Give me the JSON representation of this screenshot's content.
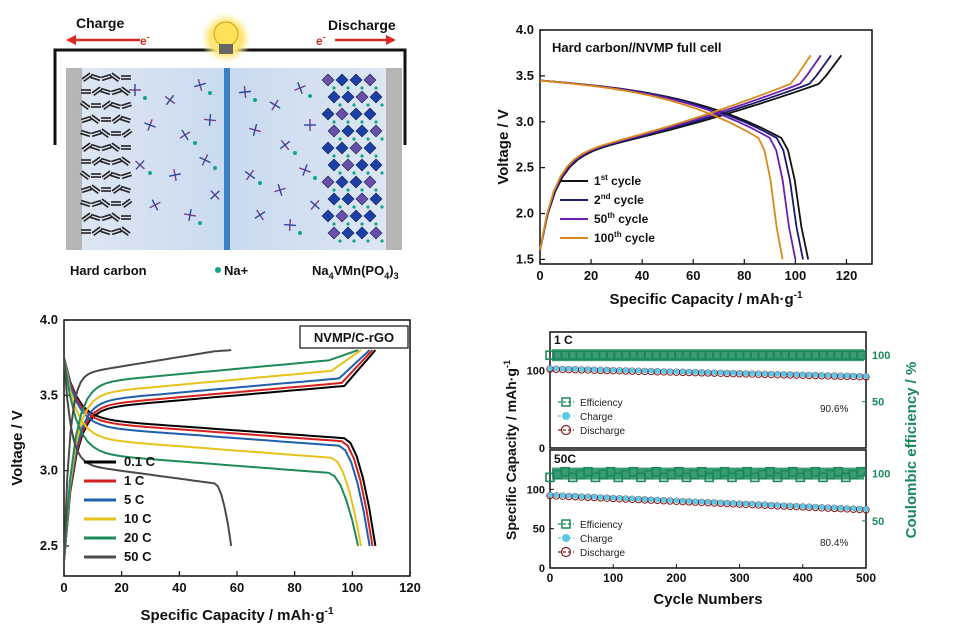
{
  "schematic": {
    "charge_label": "Charge",
    "discharge_label": "Discharge",
    "electron_left": "e",
    "electron_right": "e",
    "electron_sup": "-",
    "hard_carbon_label": "Hard carbon",
    "na_label": "Na+",
    "cathode_label_main": "Na",
    "cathode_label_sub1": "4",
    "cathode_label_mid": "VMn(PO",
    "cathode_label_sub2": "4",
    "cathode_label_end": ")",
    "cathode_label_sub3": "3",
    "colors": {
      "arrow": "#d6291f",
      "separator": "#3b7fc4",
      "anode_bg": "#b9b9b9",
      "cathode_blue": "#1c3fa6",
      "na_dot": "#15a38a"
    }
  },
  "chart_data": [
    {
      "id": "full-cell",
      "type": "line",
      "title": "Hard carbon//NVMP full cell",
      "xlabel": "Specific Capacity / mAh·g",
      "xlabel_sup": "-1",
      "ylabel": "Voltage / V",
      "xlim": [
        0,
        130
      ],
      "ylim": [
        1.45,
        4.0
      ],
      "xticks": [
        0,
        20,
        40,
        60,
        80,
        100,
        120
      ],
      "yticks": [
        1.5,
        2.0,
        2.5,
        3.0,
        3.5,
        4.0
      ],
      "ytick_labels": [
        "1.5",
        "2.0",
        "2.5",
        "3.0",
        "3.5",
        "4.0"
      ],
      "series": [
        {
          "name": "1st cycle",
          "sup": "st",
          "base": "1",
          "rest": " cycle",
          "color": "#111111",
          "cap": 118,
          "disch": 105
        },
        {
          "name": "2nd cycle",
          "sup": "nd",
          "base": "2",
          "rest": " cycle",
          "color": "#1a1a6e",
          "cap": 114,
          "disch": 103
        },
        {
          "name": "50th cycle",
          "sup": "th",
          "base": "50",
          "rest": " cycle",
          "color": "#6a1fb0",
          "cap": 110,
          "disch": 100
        },
        {
          "name": "100th cycle",
          "sup": "th",
          "base": "100",
          "rest": " cycle",
          "color": "#d98a1a",
          "cap": 106,
          "disch": 95
        }
      ]
    },
    {
      "id": "rate",
      "type": "line",
      "title": "NVMP/C-rGO",
      "xlabel": "Specific Capacity / mAh·g",
      "xlabel_sup": "-1",
      "ylabel": "Voltage / V",
      "xlim": [
        0,
        120
      ],
      "ylim": [
        2.3,
        4.0
      ],
      "xticks": [
        0,
        20,
        40,
        60,
        80,
        100,
        120
      ],
      "yticks": [
        2.5,
        3.0,
        3.5,
        4.0
      ],
      "ytick_labels": [
        "2.5",
        "3.0",
        "3.5",
        "4.0"
      ],
      "series": [
        {
          "name": "0.1 C",
          "color": "#000000",
          "cap": 108,
          "plateau": 3.55,
          "dplat": 3.35
        },
        {
          "name": "1    C",
          "color": "#d62020",
          "cap": 107,
          "plateau": 3.57,
          "dplat": 3.33
        },
        {
          "name": "5    C",
          "color": "#1f5fb0",
          "cap": 106,
          "plateau": 3.6,
          "dplat": 3.3
        },
        {
          "name": "10  C",
          "color": "#e8c21a",
          "cap": 103,
          "plateau": 3.65,
          "dplat": 3.22
        },
        {
          "name": "20  C",
          "color": "#1e8a5a",
          "cap": 102,
          "plateau": 3.72,
          "dplat": 3.12
        },
        {
          "name": "50  C",
          "color": "#4a4a4a",
          "cap": 58,
          "plateau": 3.78,
          "dplat": 3.05
        }
      ]
    },
    {
      "id": "cycling",
      "type": "scatter",
      "xlabel": "Cycle Numbers",
      "ylabel_left": "Specific Capacity / mAh·g",
      "ylabel_left_sup": "-1",
      "ylabel_right": "Coulombic efficiency / %",
      "xlim": [
        0,
        500
      ],
      "xticks": [
        0,
        100,
        200,
        300,
        400,
        500
      ],
      "panels": [
        {
          "label": "1 C",
          "ylim_left": [
            0,
            150
          ],
          "yticks_left": [
            0,
            100
          ],
          "yticks_right": [
            50,
            100
          ],
          "retention": "90.6%",
          "capacity_start": 102,
          "capacity_end": 92,
          "efficiency": 100,
          "legend": [
            "Efficiency",
            "Charge",
            "Discharge"
          ]
        },
        {
          "label": "50C",
          "ylim_left": [
            0,
            150
          ],
          "yticks_left": [
            0,
            50,
            100
          ],
          "yticks_right": [
            50,
            100
          ],
          "retention": "80.4%",
          "capacity_start": 92,
          "capacity_end": 74,
          "efficiency": 100,
          "legend": [
            "Efficiency",
            "Charge",
            "Discharge"
          ]
        }
      ],
      "colors": {
        "efficiency": "#1a8a5a",
        "charge": "#5bc8e8",
        "discharge": "#8a1a1a",
        "right_axis": "#1a8a5a"
      }
    }
  ]
}
